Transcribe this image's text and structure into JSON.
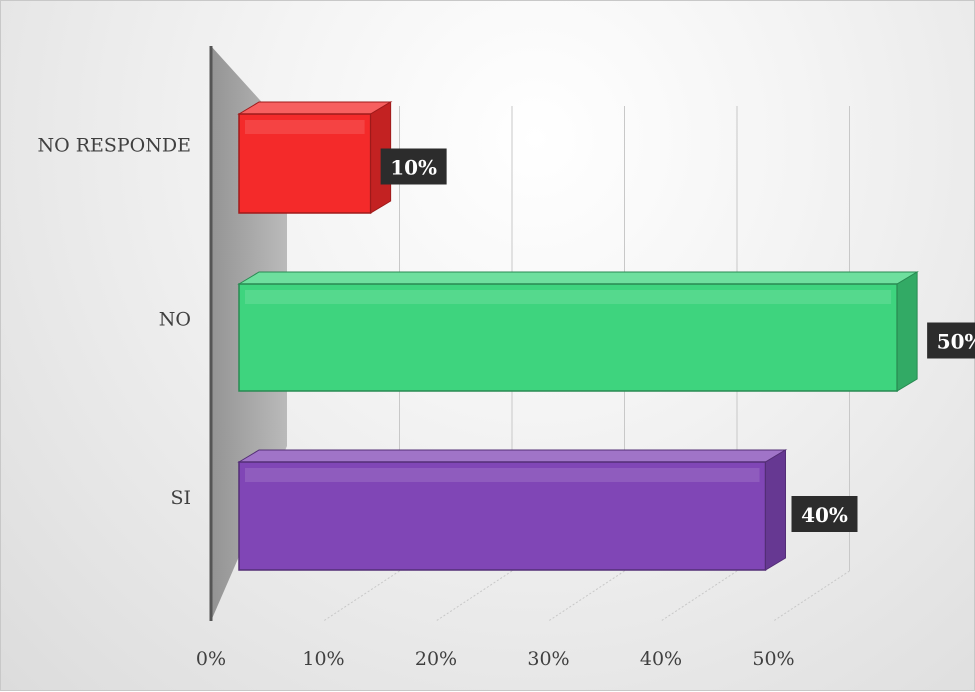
{
  "chart_data": {
    "type": "bar",
    "orientation": "horizontal",
    "three_d": true,
    "categories": [
      "NO RESPONDE",
      "NO",
      "SI"
    ],
    "values": [
      10,
      50,
      40
    ],
    "data_labels": [
      "10%",
      "50%",
      "40%"
    ],
    "colors": [
      "#f42a2a",
      "#3ed47e",
      "#8046b6"
    ],
    "x_ticks": [
      "0%",
      "10%",
      "20%",
      "30%",
      "40%",
      "50%"
    ],
    "xlim": [
      0,
      50
    ],
    "grid": true,
    "legend": false
  }
}
